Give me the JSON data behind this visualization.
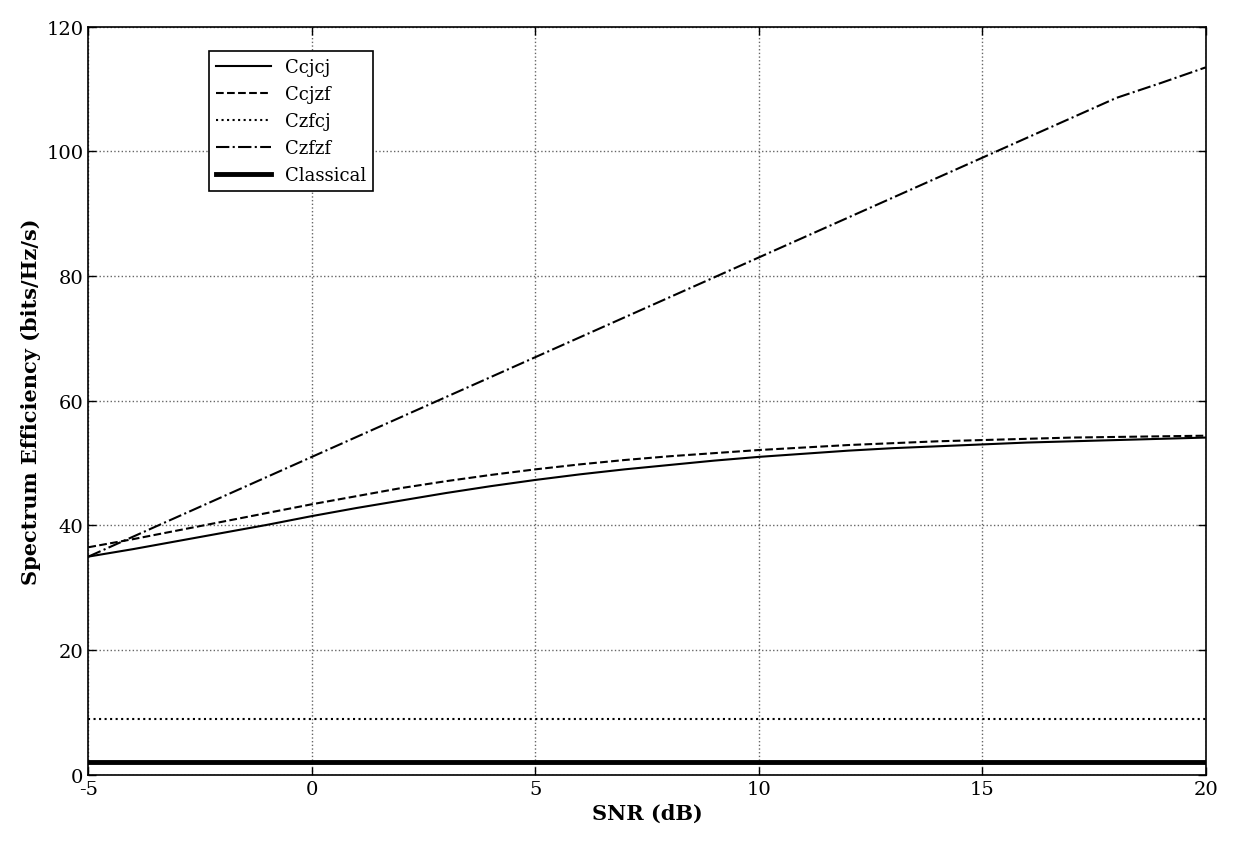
{
  "snr": [
    -5,
    -4,
    -3,
    -2,
    -1,
    0,
    1,
    2,
    3,
    4,
    5,
    6,
    7,
    8,
    9,
    10,
    11,
    12,
    13,
    14,
    15,
    16,
    17,
    18,
    19,
    20
  ],
  "Ccjcj": [
    35.0,
    36.2,
    37.5,
    38.8,
    40.1,
    41.5,
    42.8,
    44.0,
    45.2,
    46.3,
    47.3,
    48.2,
    49.0,
    49.7,
    50.4,
    51.0,
    51.5,
    52.0,
    52.4,
    52.7,
    53.0,
    53.3,
    53.5,
    53.7,
    53.9,
    54.1
  ],
  "Ccjzf": [
    36.5,
    37.8,
    39.2,
    40.6,
    42.0,
    43.4,
    44.7,
    46.0,
    47.1,
    48.1,
    49.0,
    49.8,
    50.5,
    51.1,
    51.6,
    52.1,
    52.5,
    52.9,
    53.2,
    53.5,
    53.7,
    53.9,
    54.1,
    54.2,
    54.3,
    54.4
  ],
  "Czfcj": [
    9.0,
    9.0,
    9.0,
    9.0,
    9.0,
    9.0,
    9.0,
    9.0,
    9.0,
    9.0,
    9.0,
    9.0,
    9.0,
    9.0,
    9.0,
    9.0,
    9.0,
    9.0,
    9.0,
    9.0,
    9.0,
    9.0,
    9.0,
    9.0,
    9.0,
    9.0
  ],
  "Czfzf": [
    35.0,
    38.2,
    41.4,
    44.6,
    47.8,
    51.0,
    54.2,
    57.4,
    60.6,
    63.8,
    67.0,
    70.2,
    73.4,
    76.6,
    79.8,
    83.0,
    86.2,
    89.4,
    92.6,
    95.8,
    99.0,
    102.2,
    105.4,
    108.6,
    111.0,
    113.5
  ],
  "Classical": [
    2.0,
    2.0,
    2.0,
    2.0,
    2.0,
    2.0,
    2.0,
    2.0,
    2.0,
    2.0,
    2.0,
    2.0,
    2.0,
    2.0,
    2.0,
    2.0,
    2.0,
    2.0,
    2.0,
    2.0,
    2.0,
    2.0,
    2.0,
    2.0,
    2.0,
    2.0
  ],
  "xlabel": "SNR (dB)",
  "ylabel": "Spectrum Efficiency (bits/Hz/s)",
  "xlim": [
    -5,
    20
  ],
  "ylim": [
    0,
    120
  ],
  "xticks": [
    -5,
    0,
    5,
    10,
    15,
    20
  ],
  "yticks": [
    0,
    20,
    40,
    60,
    80,
    100,
    120
  ],
  "xticklabels": [
    "-5",
    "0",
    "5",
    "10",
    "15",
    "20"
  ],
  "yticklabels": [
    "0",
    "20",
    "40",
    "60",
    "80",
    "100",
    "120"
  ],
  "legend_labels": [
    "Ccjcj",
    "Ccjzf",
    "Czfcj",
    "Czfzf",
    "Classical"
  ],
  "line_styles": [
    "-",
    "--",
    ":",
    "-.",
    "-"
  ],
  "line_widths": [
    1.5,
    1.5,
    1.5,
    1.5,
    3.5
  ],
  "line_colors": [
    "#000000",
    "#000000",
    "#000000",
    "#000000",
    "#000000"
  ],
  "font_family": "DejaVu Serif",
  "tick_fontsize": 14,
  "label_fontsize": 15,
  "legend_fontsize": 13
}
